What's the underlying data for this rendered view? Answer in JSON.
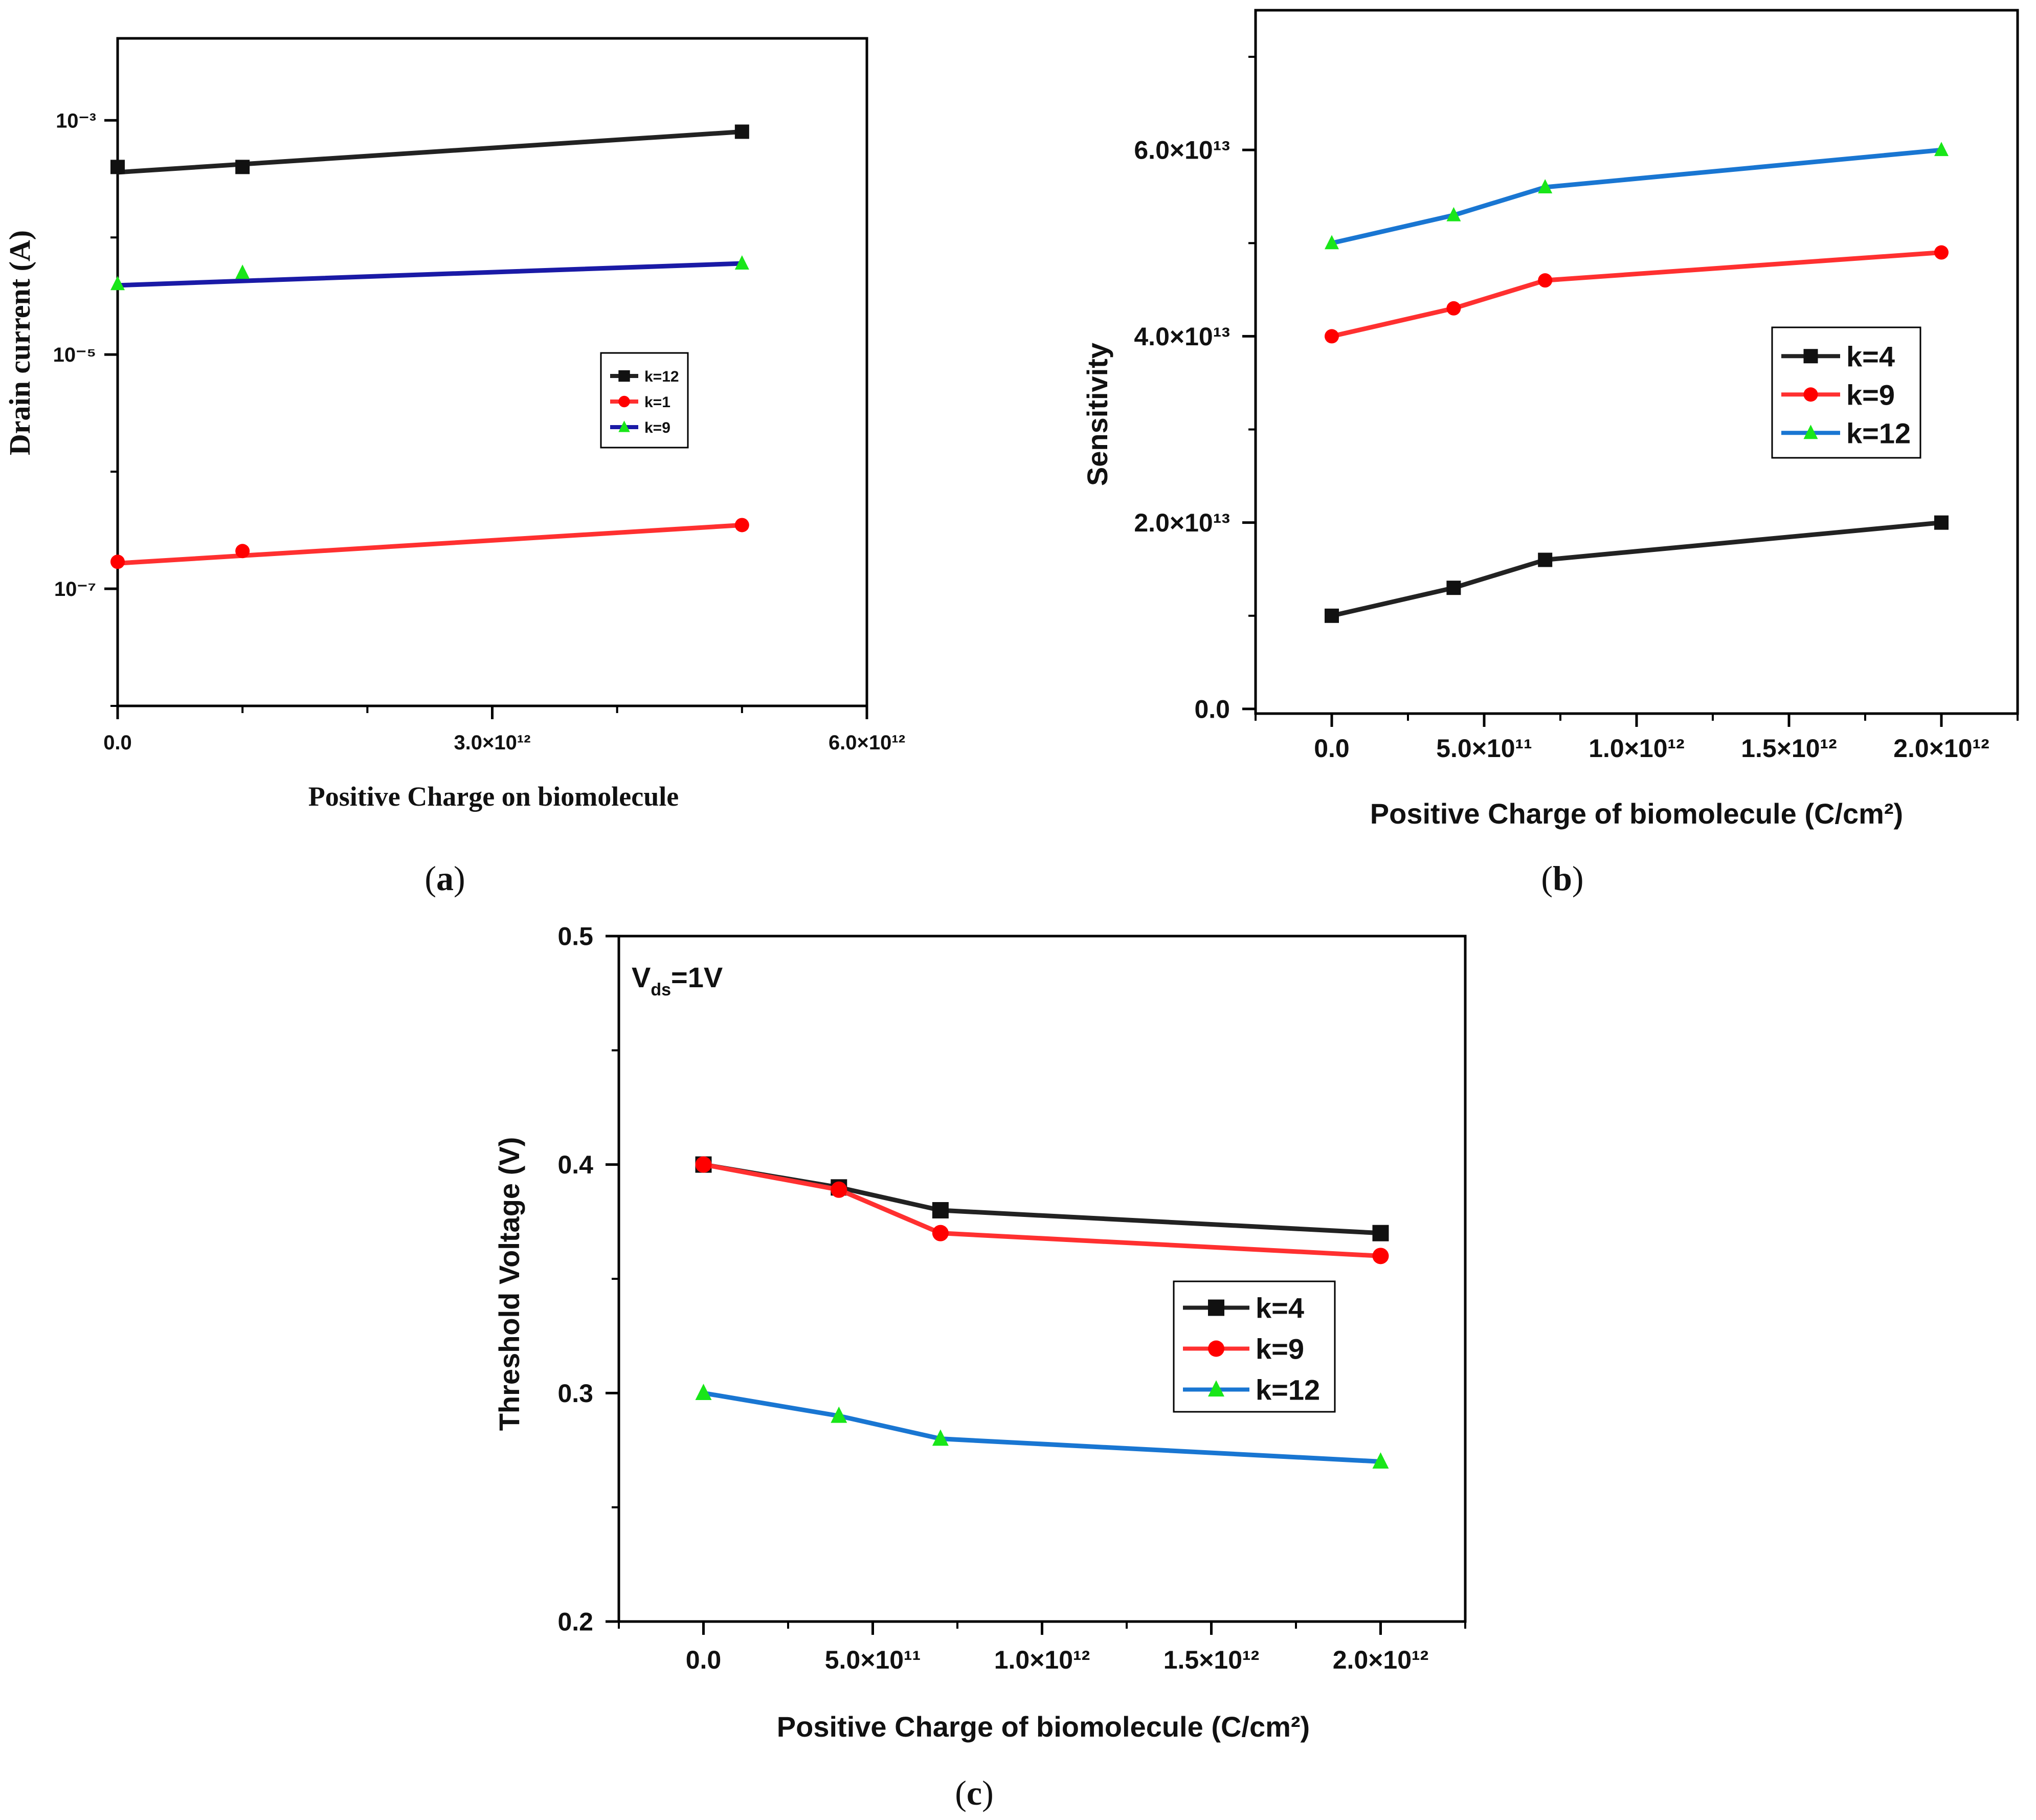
{
  "colors": {
    "black": "#222222",
    "red": "#ff3030",
    "navy": "#1a1aa6",
    "blue": "#1976d2",
    "green": "#19e619",
    "marker_black": "#111111",
    "marker_red": "#ff0000"
  },
  "chart_data": [
    {
      "id": "a",
      "type": "line",
      "caption": "a",
      "title": "",
      "xlabel": "Positive Charge on biomolecule",
      "ylabel": "Drain current (A)",
      "xlim": [
        0,
        6000000000000.0
      ],
      "ylim_log10": [
        -8,
        -2.3
      ],
      "yscale": "log",
      "x_ticks": [
        {
          "value": 0,
          "label": "0.0"
        },
        {
          "value": 3000000000000.0,
          "label": "3.0×10¹²"
        },
        {
          "value": 6000000000000.0,
          "label": "6.0×10¹²"
        }
      ],
      "y_ticks": [
        {
          "value": -3,
          "label": "10⁻³"
        },
        {
          "value": -5,
          "label": "10⁻⁵"
        },
        {
          "value": -7,
          "label": "10⁻⁷"
        }
      ],
      "legend": {
        "position": "center-right"
      },
      "series": [
        {
          "name": "k=12",
          "line": "black",
          "marker": "square",
          "marker_color": "marker_black",
          "x": [
            0,
            1000000000000.0,
            5000000000000.0
          ],
          "y": [
            0.0004,
            0.0004,
            0.0008
          ],
          "fit": [
            0.00036,
            0.0008
          ]
        },
        {
          "name": "k=1",
          "line": "red",
          "marker": "circle",
          "marker_color": "marker_red",
          "x": [
            0,
            1000000000000.0,
            5000000000000.0
          ],
          "y": [
            1.7e-07,
            2.1e-07,
            3.5e-07
          ],
          "fit": [
            1.65e-07,
            3.5e-07
          ]
        },
        {
          "name": "k=9",
          "line": "navy",
          "marker": "triangle",
          "marker_color": "green",
          "x": [
            0,
            1000000000000.0,
            5000000000000.0
          ],
          "y": [
            4e-05,
            5e-05,
            6e-05
          ],
          "fit": [
            3.9e-05,
            6e-05
          ]
        }
      ]
    },
    {
      "id": "b",
      "type": "line",
      "caption": "b",
      "title": "",
      "xlabel": "Positive Charge of biomolecule (C/cm²)",
      "ylabel": "Sensitivity",
      "xlim": [
        -250000000000.0,
        2250000000000.0
      ],
      "ylim": [
        -500000000000.0,
        75000000000000.0
      ],
      "x_ticks": [
        {
          "value": 0,
          "label": "0.0"
        },
        {
          "value": 500000000000.0,
          "label": "5.0×10¹¹"
        },
        {
          "value": 1000000000000.0,
          "label": "1.0×10¹²"
        },
        {
          "value": 1500000000000.0,
          "label": "1.5×10¹²"
        },
        {
          "value": 2000000000000.0,
          "label": "2.0×10¹²"
        }
      ],
      "y_ticks": [
        {
          "value": 0,
          "label": "0.0"
        },
        {
          "value": 20000000000000.0,
          "label": "2.0×10¹³"
        },
        {
          "value": 40000000000000.0,
          "label": "4.0×10¹³"
        },
        {
          "value": 60000000000000.0,
          "label": "6.0×10¹³"
        }
      ],
      "legend": {
        "position": "center-right"
      },
      "series": [
        {
          "name": "k=4",
          "line": "black",
          "marker": "square",
          "marker_color": "marker_black",
          "x": [
            0,
            400000000000.0,
            700000000000.0,
            2000000000000.0
          ],
          "y": [
            10000000000000.0,
            13000000000000.0,
            16000000000000.0,
            20000000000000.0
          ]
        },
        {
          "name": "k=9",
          "line": "red",
          "marker": "circle",
          "marker_color": "marker_red",
          "x": [
            0,
            400000000000.0,
            700000000000.0,
            2000000000000.0
          ],
          "y": [
            40000000000000.0,
            43000000000000.0,
            46000000000000.0,
            49000000000000.0
          ]
        },
        {
          "name": "k=12",
          "line": "blue",
          "marker": "triangle",
          "marker_color": "green",
          "x": [
            0,
            400000000000.0,
            700000000000.0,
            2000000000000.0
          ],
          "y": [
            50000000000000.0,
            53000000000000.0,
            56000000000000.0,
            60000000000000.0
          ]
        }
      ]
    },
    {
      "id": "c",
      "type": "line",
      "caption": "c",
      "title": "",
      "annotation": {
        "main": "V",
        "sub": "ds",
        "rest": "=1V"
      },
      "xlabel": "Positive Charge of biomolecule (C/cm²)",
      "ylabel": "Threshold Voltage (V)",
      "xlim": [
        -250000000000.0,
        2250000000000.0
      ],
      "ylim": [
        0.2,
        0.5
      ],
      "x_ticks": [
        {
          "value": 0,
          "label": "0.0"
        },
        {
          "value": 500000000000.0,
          "label": "5.0×10¹¹"
        },
        {
          "value": 1000000000000.0,
          "label": "1.0×10¹²"
        },
        {
          "value": 1500000000000.0,
          "label": "1.5×10¹²"
        },
        {
          "value": 2000000000000.0,
          "label": "2.0×10¹²"
        }
      ],
      "y_ticks": [
        {
          "value": 0.2,
          "label": "0.2"
        },
        {
          "value": 0.3,
          "label": "0.3"
        },
        {
          "value": 0.4,
          "label": "0.4"
        },
        {
          "value": 0.5,
          "label": "0.5"
        }
      ],
      "legend": {
        "position": "center-right"
      },
      "series": [
        {
          "name": "k=4",
          "line": "black",
          "marker": "square",
          "marker_color": "marker_black",
          "x": [
            0,
            400000000000.0,
            700000000000.0,
            2000000000000.0
          ],
          "y": [
            0.4,
            0.39,
            0.38,
            0.37
          ]
        },
        {
          "name": "k=9",
          "line": "red",
          "marker": "circle",
          "marker_color": "marker_red",
          "x": [
            0,
            400000000000.0,
            700000000000.0,
            2000000000000.0
          ],
          "y": [
            0.4,
            0.389,
            0.37,
            0.36
          ]
        },
        {
          "name": "k=12",
          "line": "blue",
          "marker": "triangle",
          "marker_color": "green",
          "x": [
            0,
            400000000000.0,
            700000000000.0,
            2000000000000.0
          ],
          "y": [
            0.3,
            0.29,
            0.28,
            0.27
          ]
        }
      ]
    }
  ]
}
